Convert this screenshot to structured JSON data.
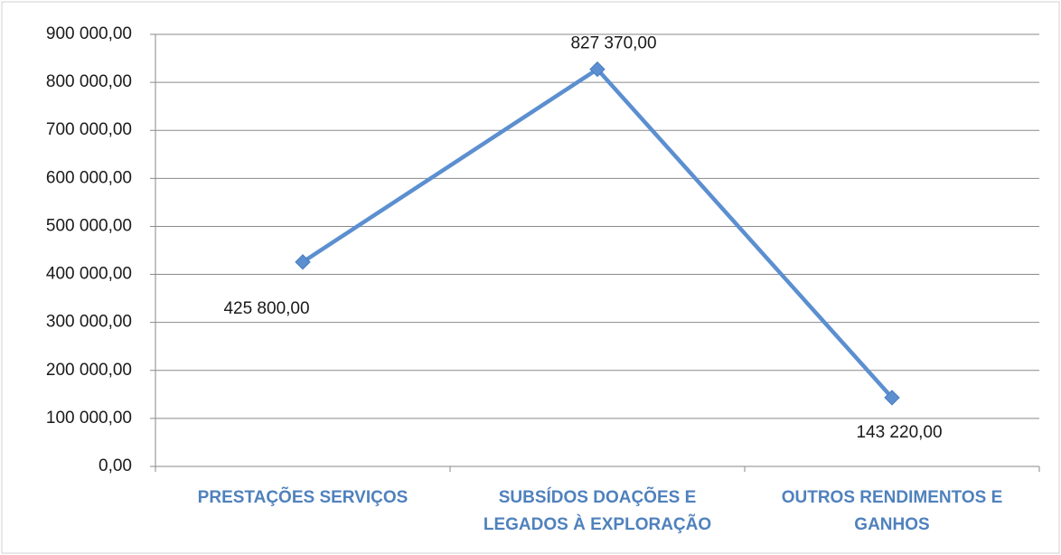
{
  "chart_data": {
    "type": "line",
    "categories": [
      "PRESTAÇÕES SERVIÇOS",
      "SUBSÍDOS DOAÇÕES E LEGADOS À EXPLORAÇÃO",
      "OUTROS RENDIMENTOS E GANHOS"
    ],
    "values": [
      425800,
      827370,
      143220
    ],
    "value_labels": [
      "425 800,00",
      "827 370,00",
      "143 220,00"
    ],
    "color": "#5b8fd0",
    "ylim": [
      0,
      900000
    ],
    "yticks": [
      {
        "value": 0,
        "label": "0,00"
      },
      {
        "value": 100000,
        "label": "100 000,00"
      },
      {
        "value": 200000,
        "label": "200 000,00"
      },
      {
        "value": 300000,
        "label": "300 000,00"
      },
      {
        "value": 400000,
        "label": "400 000,00"
      },
      {
        "value": 500000,
        "label": "500 000,00"
      },
      {
        "value": 600000,
        "label": "600 000,00"
      },
      {
        "value": 700000,
        "label": "700 000,00"
      },
      {
        "value": 800000,
        "label": "800 000,00"
      },
      {
        "value": 900000,
        "label": "900 000,00"
      }
    ],
    "grid": true
  }
}
